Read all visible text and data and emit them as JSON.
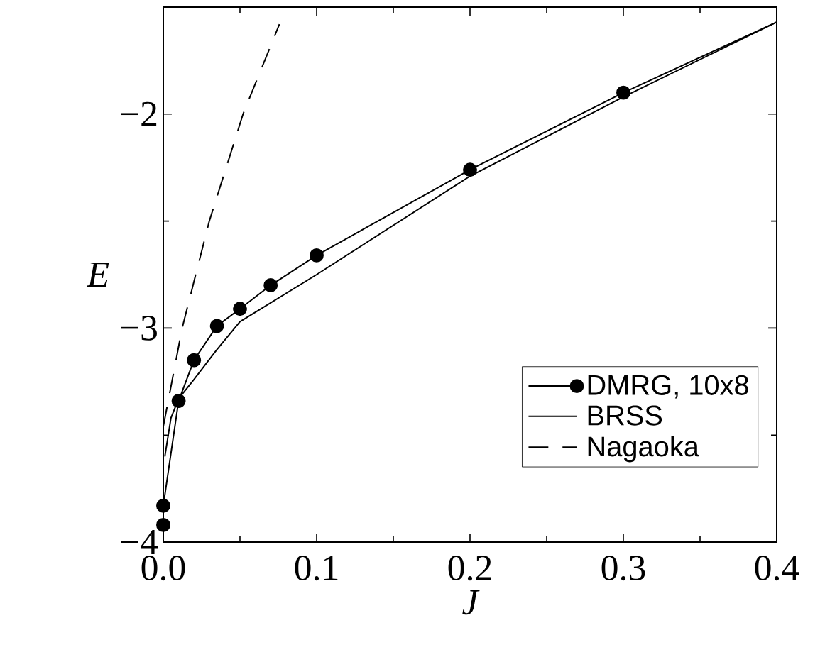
{
  "chart_data": {
    "type": "line",
    "xlabel": "J",
    "ylabel": "E",
    "xlim": [
      0,
      0.4
    ],
    "ylim": [
      -4,
      -1.5
    ],
    "xticks": [
      {
        "value": 0,
        "label": "0.0"
      },
      0.1,
      0.2,
      0.3,
      0.4
    ],
    "yticks": [
      {
        "value": -4,
        "label": "−4"
      },
      {
        "value": -3,
        "label": "−3"
      },
      {
        "value": -2,
        "label": "−2"
      }
    ],
    "legend": "bottom right",
    "grid": false,
    "series": [
      {
        "name": "DMRG, 10x8",
        "color": "#000000",
        "marker": "circle",
        "line_style": "solid",
        "x": [
          0,
          0,
          0.01,
          0.02,
          0.035,
          0.05,
          0.07,
          0.1,
          0.2,
          0.3
        ],
        "values": [
          -3.92,
          -3.83,
          -3.34,
          -3.15,
          -2.99,
          -2.91,
          -2.8,
          -2.66,
          -2.26,
          -1.9
        ]
      },
      {
        "name": "BRSS",
        "color": "#000000",
        "marker": "none",
        "line_style": "solid",
        "x": [
          0.001,
          0.005,
          0.01,
          0.02,
          0.035,
          0.05,
          0.1,
          0.2,
          0.3,
          0.4
        ],
        "values": [
          -3.6,
          -3.42,
          -3.33,
          -3.24,
          -3.1,
          -2.97,
          -2.75,
          -2.29,
          -1.92,
          -1.57
        ]
      },
      {
        "name": "Nagaoka",
        "color": "#000000",
        "marker": "none",
        "line_style": "dashed",
        "x": [
          0,
          0.0123,
          0.03,
          0.052,
          0.0757
        ],
        "values": [
          -3.46,
          -3.0,
          -2.5,
          -2.0,
          -1.58
        ]
      },
      {
        "color": "#000000",
        "marker": "none",
        "line_style": "solid",
        "x": [
          0.3,
          0.4
        ],
        "values": [
          -1.9,
          -1.57
        ]
      }
    ]
  }
}
